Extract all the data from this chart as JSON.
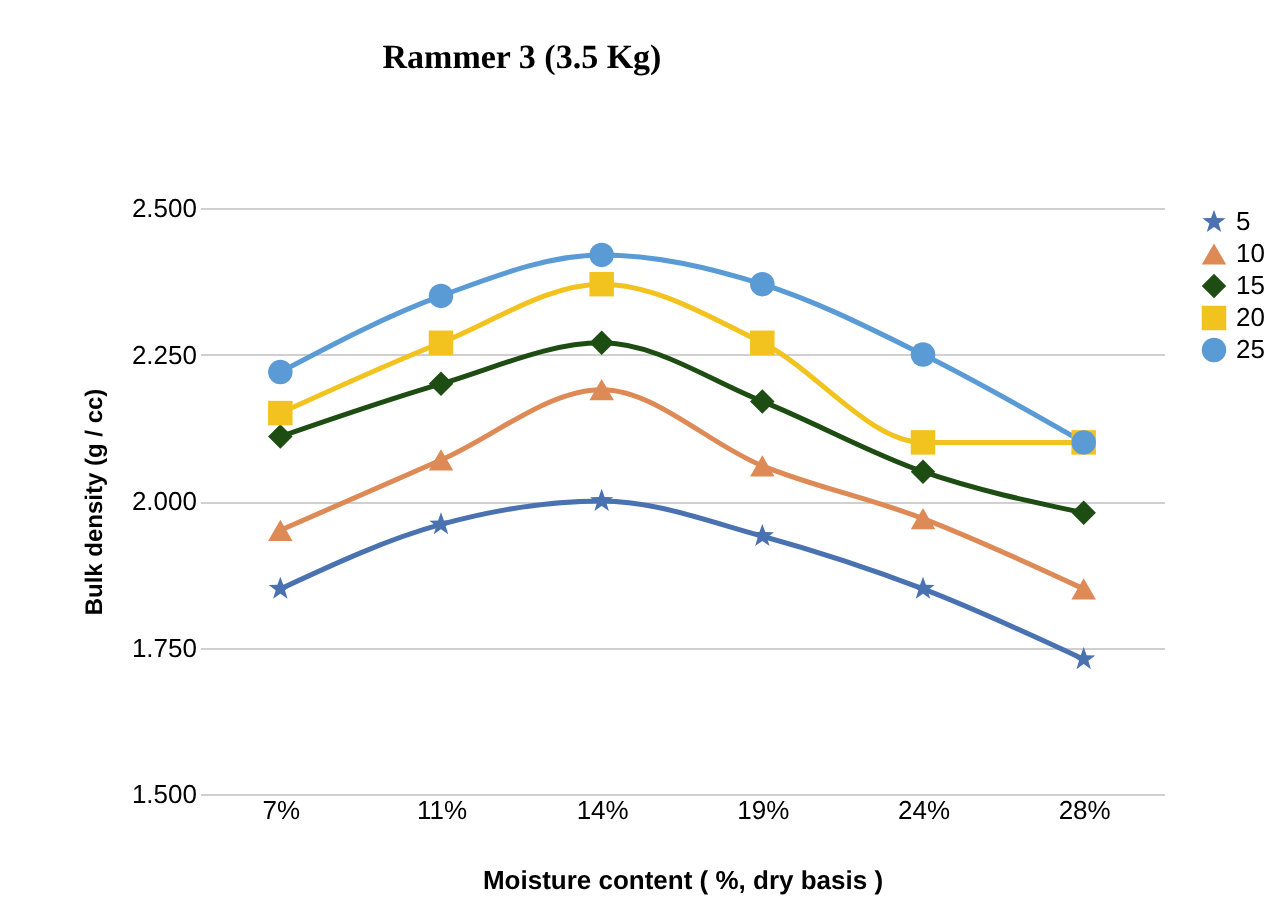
{
  "chart_data": {
    "type": "line",
    "title": "Rammer 3 (3.5 Kg)",
    "xlabel": "Moisture content ( %, dry basis )",
    "ylabel": "Bulk density (g / cc)",
    "categories": [
      "7%",
      "11%",
      "14%",
      "19%",
      "24%",
      "28%"
    ],
    "series": [
      {
        "name": "5",
        "color": "#4a72b0",
        "marker": "star",
        "values": [
          1.85,
          1.96,
          2.0,
          1.94,
          1.85,
          1.73
        ]
      },
      {
        "name": "10",
        "color": "#dd8a57",
        "marker": "triangle",
        "values": [
          1.95,
          2.07,
          2.19,
          2.06,
          1.97,
          1.85
        ]
      },
      {
        "name": "15",
        "color": "#1e4d14",
        "marker": "diamond",
        "values": [
          2.11,
          2.2,
          2.27,
          2.17,
          2.05,
          1.98
        ]
      },
      {
        "name": "20",
        "color": "#f2c21e",
        "marker": "square",
        "values": [
          2.15,
          2.27,
          2.37,
          2.27,
          2.1,
          2.1
        ]
      },
      {
        "name": "25",
        "color": "#5b9bd5",
        "marker": "circle",
        "values": [
          2.22,
          2.35,
          2.42,
          2.37,
          2.25,
          2.1
        ]
      }
    ],
    "ylim": [
      1.5,
      2.5
    ],
    "yticks": [
      {
        "value": 1.5,
        "label": "1.500"
      },
      {
        "value": 1.75,
        "label": "1.750"
      },
      {
        "value": 2.0,
        "label": "2.000"
      },
      {
        "value": 2.25,
        "label": "2.250"
      },
      {
        "value": 2.5,
        "label": "2.500"
      }
    ],
    "grid": "y",
    "legend": "right",
    "line_style": "solid"
  }
}
